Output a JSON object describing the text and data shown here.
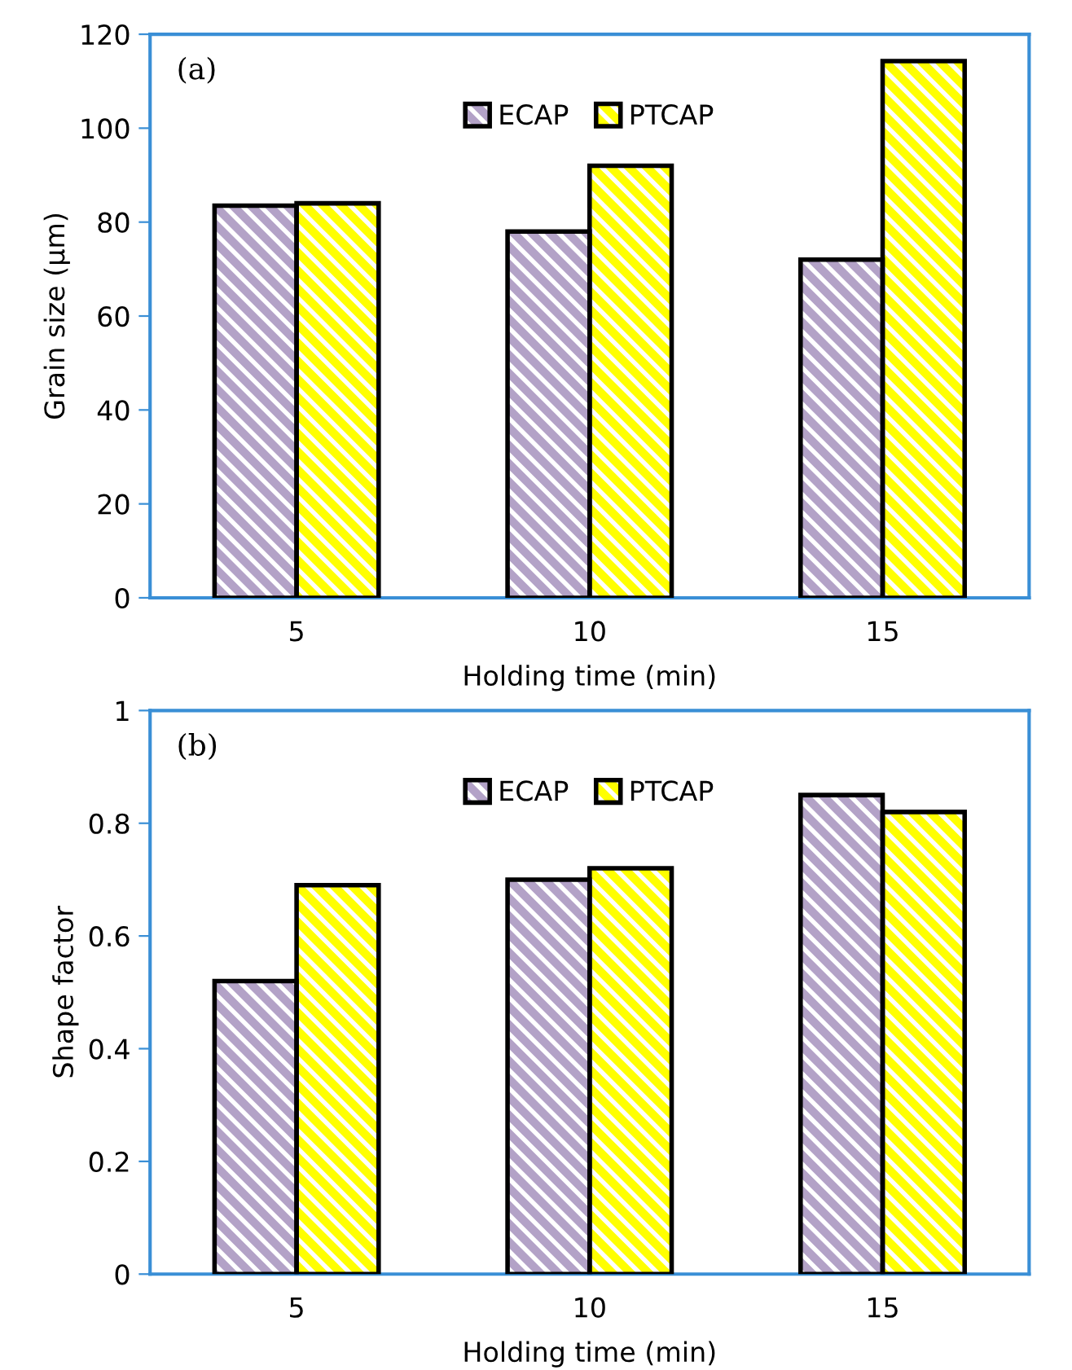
{
  "chart_data": [
    {
      "type": "bar",
      "categories": [
        "5",
        "10",
        "15"
      ],
      "xlabel": "Holding time (min)",
      "ylabel": "Grain size (µm)",
      "annotations": [
        "(a)"
      ],
      "ylim": [
        0,
        120
      ],
      "yticks": [
        0,
        20,
        40,
        60,
        80,
        100,
        120
      ],
      "grid": false,
      "legend": "top",
      "series": [
        {
          "name": "ECAP",
          "color": "#b3a2c7",
          "values": [
            83.5,
            78,
            72
          ]
        },
        {
          "name": "PTCAP",
          "color": "#ffff00",
          "values": [
            84,
            92,
            114.3
          ]
        }
      ]
    },
    {
      "type": "bar",
      "categories": [
        "5",
        "10",
        "15"
      ],
      "xlabel": "Holding time (min)",
      "ylabel": "Shape factor",
      "annotations": [
        "(b)"
      ],
      "ylim": [
        0,
        1
      ],
      "yticks": [
        0,
        {
          "value": 0.2,
          "label": "0.2"
        },
        {
          "value": 0.4,
          "label": "0.4"
        },
        {
          "value": 0.6,
          "label": "0.6"
        },
        {
          "value": 0.8,
          "label": "0.8"
        },
        1
      ],
      "grid": false,
      "legend": "top",
      "series": [
        {
          "name": "ECAP",
          "color": "#b3a2c7",
          "values": [
            0.52,
            0.7,
            0.85
          ]
        },
        {
          "name": "PTCAP",
          "color": "#ffff00",
          "values": [
            0.69,
            0.72,
            0.82
          ]
        }
      ]
    }
  ]
}
